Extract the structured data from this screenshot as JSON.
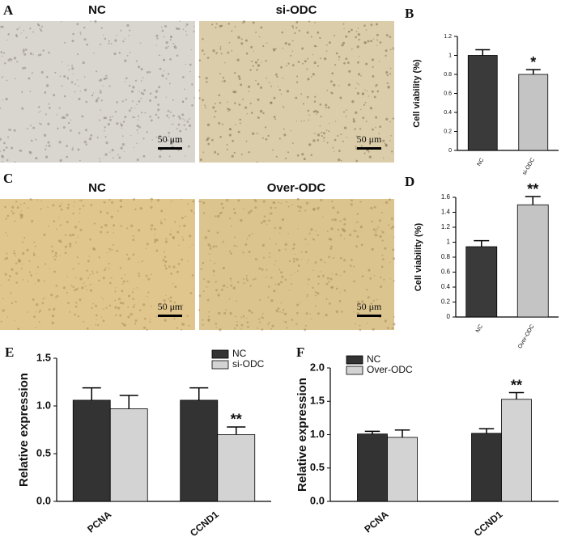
{
  "panels": [
    "A",
    "B",
    "C",
    "D",
    "E",
    "F"
  ],
  "images": [
    {
      "titles": [
        "NC",
        "si-ODC"
      ],
      "scale_bars": [
        "50 μm",
        "50 μm"
      ]
    },
    {
      "titles": [
        "NC",
        "Over-ODC"
      ],
      "scale_bars": [
        "50 μm",
        "50 μm"
      ]
    }
  ],
  "chart_data": [
    {
      "type": "bar",
      "ylabel": "Cell viability (%)",
      "categories": [
        "NC",
        "si-ODC"
      ],
      "values": [
        1.0,
        0.8
      ],
      "errors": [
        0.06,
        0.05
      ],
      "colors": [
        "#3a3a3a",
        "#c4c4c4"
      ],
      "ylim": [
        0,
        1.2
      ],
      "yticks": [
        0,
        0.2,
        0.4,
        0.6,
        0.8,
        1,
        1.2
      ],
      "annotations": [
        "*"
      ]
    },
    {
      "type": "bar",
      "ylabel": "Cell viability (%)",
      "categories": [
        "NC",
        "Over-ODC"
      ],
      "values": [
        0.94,
        1.5
      ],
      "errors": [
        0.08,
        0.11
      ],
      "colors": [
        "#3a3a3a",
        "#c4c4c4"
      ],
      "ylim": [
        0,
        1.6
      ],
      "yticks": [
        0,
        0.2,
        0.4,
        0.6,
        0.8,
        1,
        1.2,
        1.4,
        1.6
      ],
      "annotations": [
        "**"
      ]
    },
    {
      "type": "grouped-bar",
      "ylabel": "Relative expression",
      "categories": [
        "PCNA",
        "CCND1"
      ],
      "series": [
        {
          "name": "NC",
          "color": "#333333",
          "values": [
            1.06,
            1.06
          ],
          "errors": [
            0.13,
            0.13
          ]
        },
        {
          "name": "si-ODC",
          "color": "#d3d3d3",
          "values": [
            0.97,
            0.7
          ],
          "errors": [
            0.14,
            0.08
          ]
        }
      ],
      "ylim": [
        0,
        1.5
      ],
      "yticks": [
        {
          "value": 0,
          "label": "0.0"
        },
        0.5,
        {
          "value": 1,
          "label": "1.0"
        },
        1.5
      ],
      "annotations": [
        "**"
      ]
    },
    {
      "type": "grouped-bar",
      "ylabel": "Relative expression",
      "categories": [
        "PCNA",
        "CCND1"
      ],
      "series": [
        {
          "name": "NC",
          "color": "#333333",
          "values": [
            1.01,
            1.02
          ],
          "errors": [
            0.04,
            0.07
          ]
        },
        {
          "name": "Over-ODC",
          "color": "#d3d3d3",
          "values": [
            0.96,
            1.53
          ],
          "errors": [
            0.11,
            0.1
          ]
        }
      ],
      "ylim": [
        0,
        2
      ],
      "yticks": [
        {
          "value": 0,
          "label": "0.0"
        },
        0.5,
        {
          "value": 1,
          "label": "1.0"
        },
        1.5,
        {
          "value": 2,
          "label": "2.0"
        }
      ],
      "annotations": [
        "**"
      ]
    }
  ]
}
